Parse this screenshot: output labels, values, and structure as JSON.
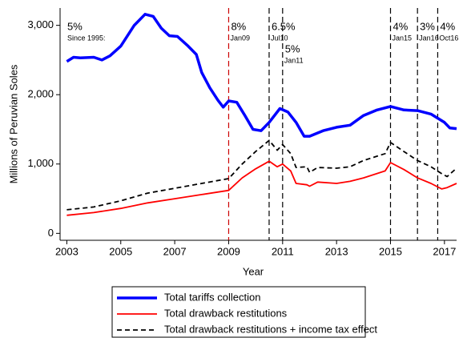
{
  "chart_data": {
    "type": "line",
    "x_label": "Year",
    "y_label": "Millions of Peruvian Soles",
    "xlim": [
      2002.75,
      2017.45
    ],
    "ylim": [
      -100,
      3250
    ],
    "xticks": [
      2003,
      2005,
      2007,
      2009,
      2011,
      2013,
      2015,
      2017
    ],
    "yticks": [
      0,
      {
        "value": 1000,
        "label": "1,000"
      },
      {
        "value": 2000,
        "label": "2,000"
      },
      {
        "value": 3000,
        "label": "3,000"
      }
    ],
    "series": [
      {
        "name": "Total tariffs collection",
        "color": "#0000ff",
        "width": 3.5,
        "dash": "none",
        "x": [
          2003.0,
          2003.25,
          2003.5,
          2004.0,
          2004.3,
          2004.6,
          2005.0,
          2005.5,
          2005.9,
          2006.2,
          2006.5,
          2006.8,
          2007.1,
          2007.5,
          2007.8,
          2008.0,
          2008.3,
          2008.6,
          2008.8,
          2009.0,
          2009.3,
          2009.6,
          2009.9,
          2010.2,
          2010.5,
          2010.9,
          2011.2,
          2011.5,
          2011.8,
          2012.0,
          2012.5,
          2013.0,
          2013.5,
          2014.0,
          2014.5,
          2015.0,
          2015.5,
          2016.0,
          2016.5,
          2017.0,
          2017.2,
          2017.45
        ],
        "values": [
          2480,
          2540,
          2530,
          2540,
          2500,
          2560,
          2700,
          3000,
          3160,
          3130,
          2960,
          2850,
          2840,
          2700,
          2580,
          2320,
          2100,
          1920,
          1820,
          1910,
          1890,
          1700,
          1500,
          1480,
          1600,
          1800,
          1750,
          1600,
          1400,
          1400,
          1480,
          1530,
          1560,
          1700,
          1780,
          1830,
          1780,
          1770,
          1720,
          1600,
          1520,
          1510
        ]
      },
      {
        "name": "Total drawback restitutions",
        "color": "#ff0000",
        "width": 1.8,
        "dash": "none",
        "x": [
          2003.0,
          2004.0,
          2005.0,
          2006.0,
          2007.0,
          2008.0,
          2009.0,
          2009.5,
          2010.0,
          2010.5,
          2010.8,
          2011.0,
          2011.3,
          2011.5,
          2011.9,
          2012.0,
          2012.3,
          2013.0,
          2013.5,
          2014.0,
          2014.8,
          2015.0,
          2015.5,
          2016.0,
          2016.5,
          2016.9,
          2017.1,
          2017.45
        ],
        "values": [
          260,
          300,
          360,
          440,
          500,
          560,
          620,
          800,
          930,
          1040,
          960,
          1000,
          900,
          720,
          700,
          680,
          740,
          720,
          750,
          800,
          900,
          1020,
          920,
          800,
          720,
          640,
          660,
          720
        ]
      },
      {
        "name": "Total drawback restitutions + income tax effect",
        "color": "#000000",
        "width": 1.8,
        "dash": "6,4",
        "x": [
          2003.0,
          2004.0,
          2005.0,
          2006.0,
          2007.0,
          2008.0,
          2009.0,
          2009.5,
          2010.0,
          2010.5,
          2010.8,
          2011.0,
          2011.3,
          2011.5,
          2011.9,
          2012.0,
          2012.3,
          2013.0,
          2013.5,
          2014.0,
          2014.8,
          2015.0,
          2015.5,
          2016.0,
          2016.5,
          2016.9,
          2017.1,
          2017.45
        ],
        "values": [
          340,
          380,
          470,
          580,
          650,
          720,
          790,
          1000,
          1180,
          1340,
          1200,
          1280,
          1150,
          950,
          960,
          880,
          950,
          940,
          960,
          1050,
          1150,
          1310,
          1180,
          1050,
          960,
          860,
          820,
          940
        ]
      }
    ],
    "note": {
      "label": "5%",
      "sublabel": "Since 1995:"
    },
    "reference_lines": [
      {
        "x": 2009.0,
        "label": "8%",
        "sublabel": "Jan09",
        "color": "#cc0000"
      },
      {
        "x": 2010.5,
        "label": "6.5%",
        "sublabel": "Jul10",
        "color": "#000000"
      },
      {
        "x": 2011.0,
        "label": "5%",
        "sublabel": "Jan11",
        "color": "#000000"
      },
      {
        "x": 2015.0,
        "label": "4%",
        "sublabel": "Jan15",
        "color": "#000000"
      },
      {
        "x": 2016.0,
        "label": "3%",
        "sublabel": "Jan16",
        "color": "#000000"
      },
      {
        "x": 2016.75,
        "label": "4%",
        "sublabel": "Oct16",
        "color": "#000000"
      }
    ]
  }
}
